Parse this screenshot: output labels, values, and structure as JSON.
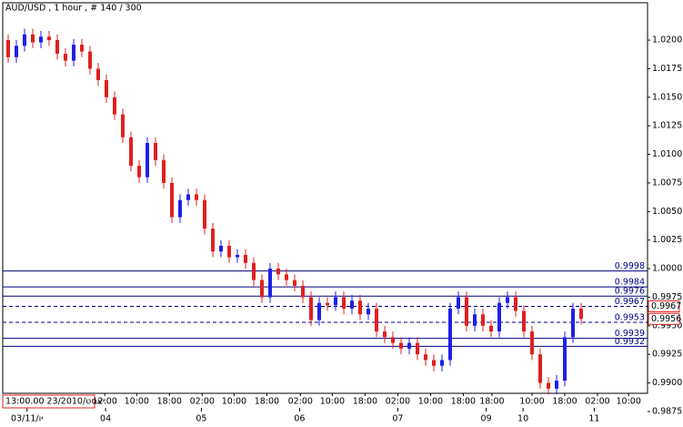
{
  "chart_data": {
    "type": "candlestick",
    "title": "AUD/USD , 1 hour , # 140 / 300",
    "bull_color": "#1f1fe8",
    "bear_color": "#e02020",
    "open": [
      1.02,
      1.0185,
      1.0195,
      1.0205,
      1.0198,
      1.0203,
      1.02,
      1.0188,
      1.0182,
      1.0196,
      1.019,
      1.0175,
      1.0165,
      1.015,
      1.0135,
      1.0115,
      1.009,
      1.008,
      1.011,
      1.0095,
      1.0075,
      1.0045,
      1.006,
      1.0065,
      1.006,
      1.0035,
      1.0015,
      1.002,
      1.001,
      1.0012,
      1.0005,
      0.999,
      0.9975,
      1.0,
      0.9995,
      0.999,
      0.9985,
      0.9975,
      0.9955,
      0.997,
      0.9968,
      0.9975,
      0.9965,
      0.9972,
      0.996,
      0.9965,
      0.9945,
      0.994,
      0.9935,
      0.993,
      0.9935,
      0.9925,
      0.992,
      0.9915,
      0.992,
      0.9965,
      0.9975,
      0.995,
      0.996,
      0.995,
      0.9945,
      0.997,
      0.9975,
      0.9963,
      0.9945,
      0.9925,
      0.99,
      0.9895,
      0.9902,
      0.994,
      0.9965
    ],
    "high": [
      1.0205,
      1.02,
      1.021,
      1.021,
      1.0208,
      1.0208,
      1.0205,
      1.0193,
      1.0201,
      1.0201,
      1.0195,
      1.018,
      1.017,
      1.0155,
      1.014,
      1.012,
      1.0095,
      1.0115,
      1.0115,
      1.01,
      1.008,
      1.0065,
      1.007,
      1.007,
      1.0065,
      1.004,
      1.0025,
      1.0025,
      1.0017,
      1.0017,
      1.001,
      0.9995,
      1.0005,
      1.0005,
      1.0,
      0.9995,
      0.999,
      0.998,
      0.9975,
      0.9975,
      0.998,
      0.998,
      0.9977,
      0.9977,
      0.997,
      0.997,
      0.995,
      0.9945,
      0.994,
      0.994,
      0.994,
      0.993,
      0.9925,
      0.9925,
      0.997,
      0.998,
      0.998,
      0.9965,
      0.9965,
      0.9955,
      0.9975,
      0.998,
      0.998,
      0.9968,
      0.995,
      0.993,
      0.9905,
      0.9907,
      0.9945,
      0.997,
      0.997
    ],
    "low": [
      1.018,
      1.018,
      1.019,
      1.0193,
      1.0193,
      1.0195,
      1.0183,
      1.0177,
      1.0177,
      1.0185,
      1.017,
      1.016,
      1.0145,
      1.013,
      1.011,
      1.0085,
      1.0075,
      1.0075,
      1.009,
      1.007,
      1.004,
      1.004,
      1.0055,
      1.0055,
      1.003,
      1.001,
      1.001,
      1.0005,
      1.0005,
      1.0,
      0.9985,
      0.997,
      0.997,
      0.999,
      0.9985,
      0.998,
      0.997,
      0.995,
      0.995,
      0.9963,
      0.9963,
      0.996,
      0.996,
      0.9955,
      0.9955,
      0.994,
      0.9935,
      0.993,
      0.9925,
      0.9925,
      0.992,
      0.9915,
      0.991,
      0.991,
      0.9915,
      0.996,
      0.9945,
      0.9945,
      0.9945,
      0.994,
      0.994,
      0.9965,
      0.9958,
      0.994,
      0.992,
      0.9895,
      0.989,
      0.989,
      0.9897,
      0.9935,
      0.9951
    ],
    "close": [
      1.0185,
      1.0195,
      1.0205,
      1.0198,
      1.0203,
      1.02,
      1.0188,
      1.0182,
      1.0196,
      1.019,
      1.0175,
      1.0165,
      1.015,
      1.0135,
      1.0115,
      1.009,
      1.008,
      1.011,
      1.0095,
      1.0075,
      1.0045,
      1.006,
      1.0065,
      1.006,
      1.0035,
      1.0015,
      1.002,
      1.001,
      1.0012,
      1.0005,
      0.999,
      0.9975,
      1.0,
      0.9995,
      0.999,
      0.9985,
      0.9975,
      0.9955,
      0.997,
      0.9968,
      0.9975,
      0.9965,
      0.9972,
      0.996,
      0.9965,
      0.9945,
      0.994,
      0.9935,
      0.993,
      0.9935,
      0.9925,
      0.992,
      0.9915,
      0.992,
      0.9965,
      0.9975,
      0.995,
      0.996,
      0.995,
      0.9945,
      0.997,
      0.9975,
      0.9963,
      0.9945,
      0.9925,
      0.99,
      0.9895,
      0.9902,
      0.994,
      0.9965,
      0.9956
    ],
    "ylim": [
      0.98909,
      1.02327
    ],
    "yticks": [
      {
        "value": 1.02,
        "label": "1.0200"
      },
      {
        "value": 1.0175,
        "label": "1.0175"
      },
      {
        "value": 1.015,
        "label": "1.0150"
      },
      {
        "value": 1.0125,
        "label": "1.0125"
      },
      {
        "value": 1.01,
        "label": "1.0100"
      },
      {
        "value": 1.0075,
        "label": "1.0075"
      },
      {
        "value": 1.005,
        "label": "1.0050"
      },
      {
        "value": 1.0025,
        "label": "1.0025"
      },
      {
        "value": 1,
        "label": "1.0000"
      },
      {
        "value": 0.9975,
        "label": "0.9975"
      },
      {
        "value": 0.995,
        "label": "0.9950"
      },
      {
        "value": 0.9925,
        "label": "0.9925"
      },
      {
        "value": 0.99,
        "label": "0.9900"
      },
      {
        "value": 0.9875,
        "label": "0.9875"
      }
    ],
    "xticks": [
      {
        "value": 11.8,
        "label": "12:00"
      },
      {
        "value": 15.7,
        "label": "10:00"
      },
      {
        "value": 19.7,
        "label": "18:00"
      },
      {
        "value": 23.7,
        "label": "02:00"
      },
      {
        "value": 27.6,
        "label": "10:00"
      },
      {
        "value": 31.6,
        "label": "18:00"
      },
      {
        "value": 35.7,
        "label": "02:00"
      },
      {
        "value": 39.6,
        "label": "10:00"
      },
      {
        "value": 43.6,
        "label": "18:00"
      },
      {
        "value": 47.6,
        "label": "02:00"
      },
      {
        "value": 51.6,
        "label": "10:00"
      },
      {
        "value": 55.6,
        "label": "18:00"
      },
      {
        "value": 59.1,
        "label": "18:00"
      },
      {
        "value": 64,
        "label": "10:00"
      },
      {
        "value": 68,
        "label": "18:00"
      },
      {
        "value": 72,
        "label": "02:00"
      },
      {
        "value": 75.8,
        "label": "10:00"
      }
    ],
    "date_ticks": [
      {
        "value": 2.3,
        "label": "03/11/יו"
      },
      {
        "value": 11.9,
        "label": "04"
      },
      {
        "value": 23.6,
        "label": "05"
      },
      {
        "value": 35.6,
        "label": "06"
      },
      {
        "value": 47.6,
        "label": "07"
      },
      {
        "value": 58.4,
        "label": "09"
      },
      {
        "value": 62.9,
        "label": "10"
      },
      {
        "value": 71.6,
        "label": "11"
      }
    ],
    "crosshair_label": "13:00.00 23/2010/יאסט",
    "level_color": "#000080",
    "levels": [
      {
        "value": 0.9998,
        "label": "0.9998",
        "style": "solid"
      },
      {
        "value": 0.9984,
        "label": "0.9984",
        "style": "solid"
      },
      {
        "value": 0.9976,
        "label": "0.9976",
        "style": "solid"
      },
      {
        "value": 0.9967,
        "label": "0.9967",
        "style": "dashed"
      },
      {
        "value": 0.9953,
        "label": "0.9953",
        "style": "dashed"
      },
      {
        "value": 0.9939,
        "label": "0.9939",
        "style": "solid"
      },
      {
        "value": 0.9932,
        "label": "0.9932",
        "style": "solid"
      }
    ],
    "price_markers": [
      {
        "value": 0.9967,
        "label": "0.9967"
      },
      {
        "value": 0.9956,
        "label": "0.9956"
      }
    ],
    "marker_color": "#e02020"
  }
}
